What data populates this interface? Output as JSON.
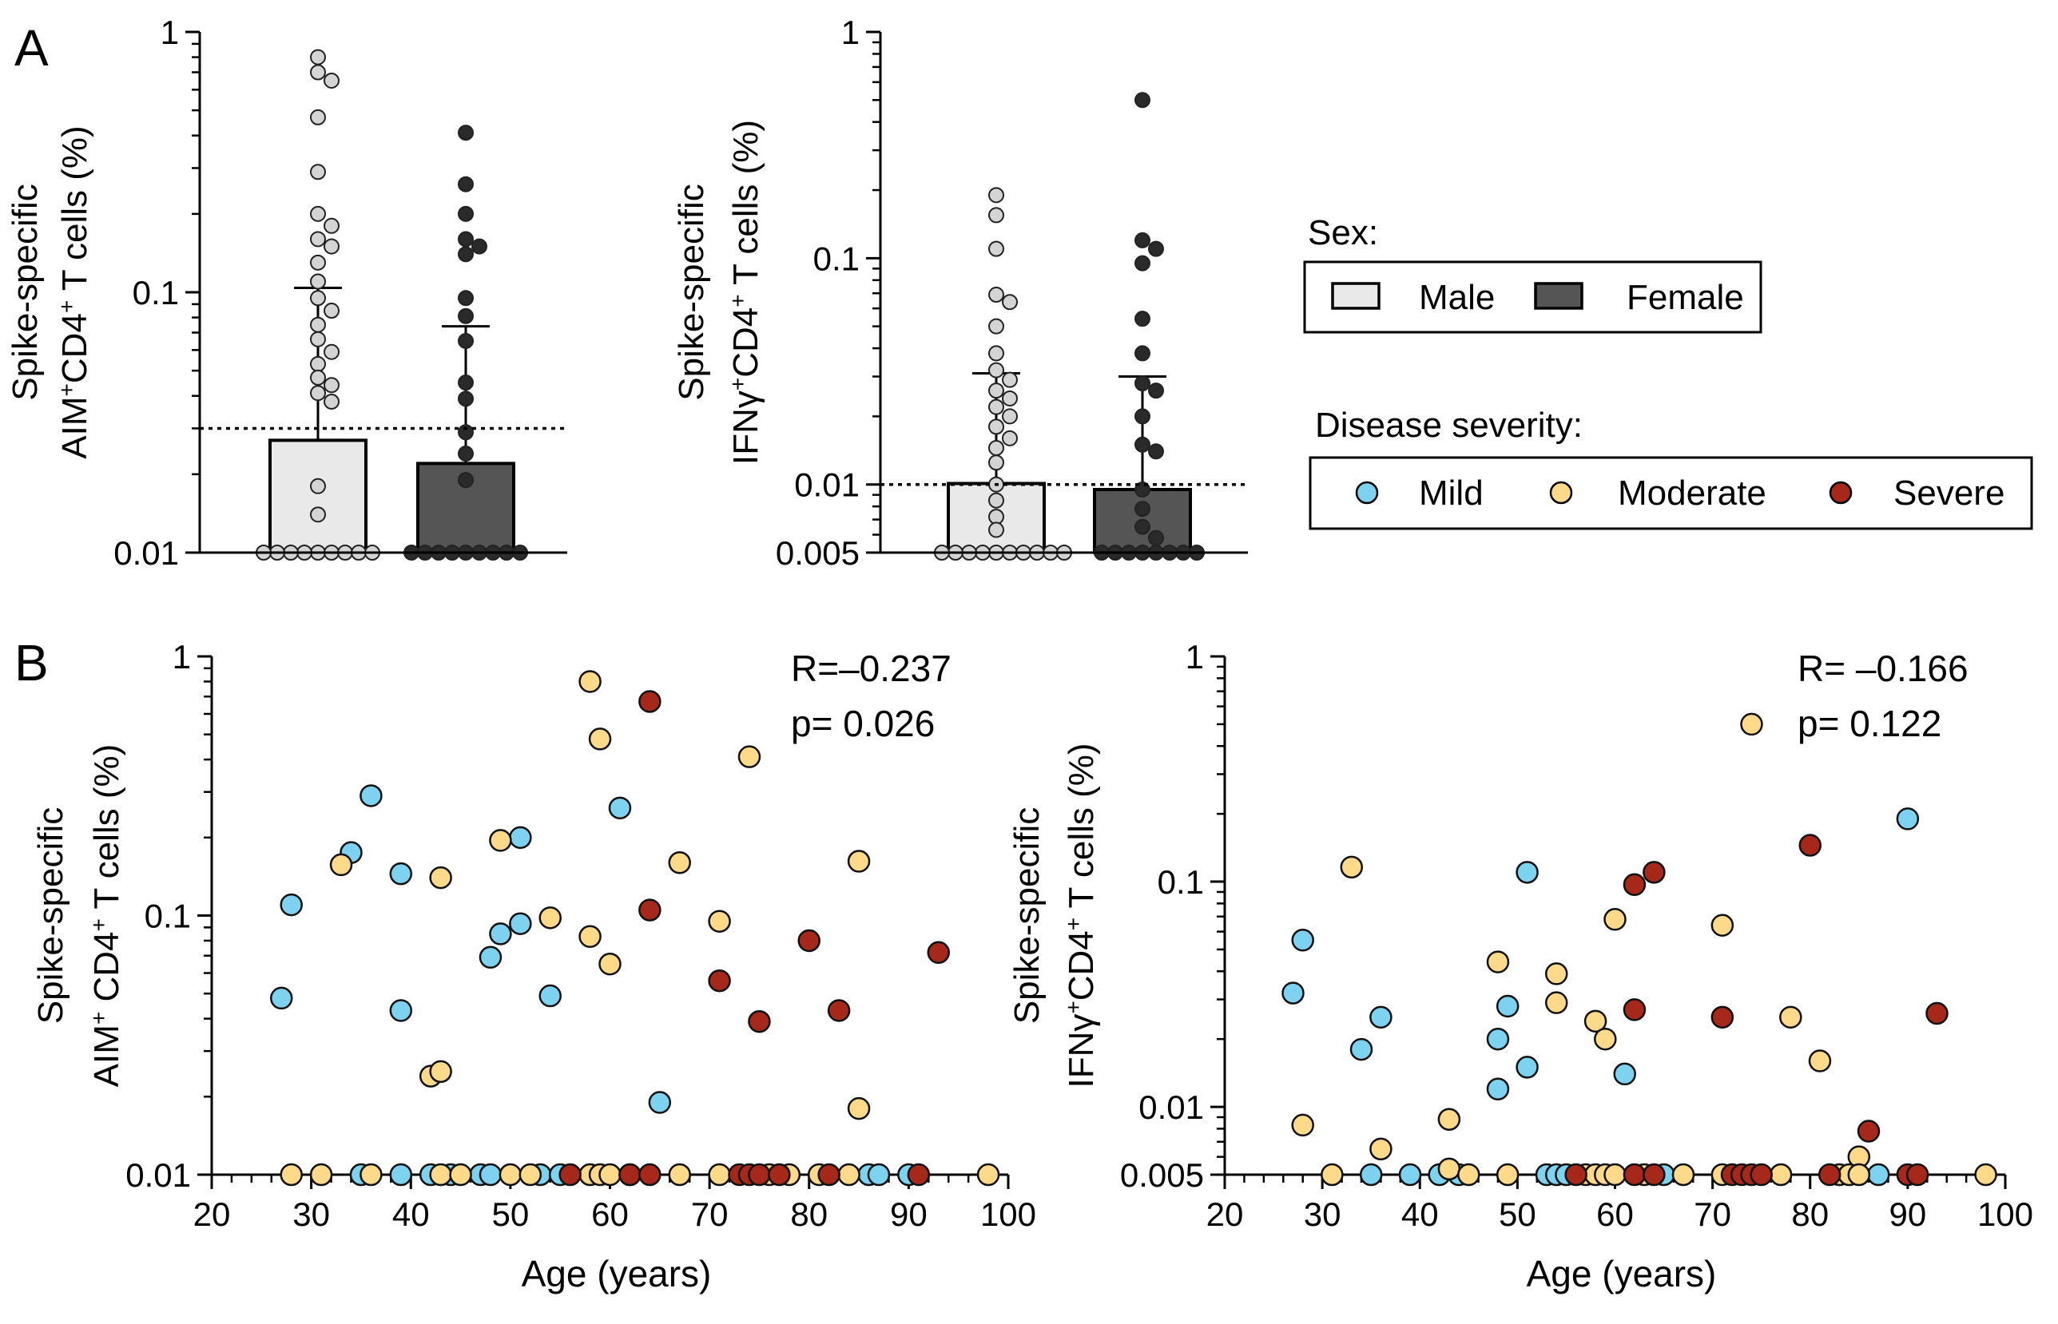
{
  "panels": {
    "A": "A",
    "B": "B"
  },
  "colors": {
    "male": "#e9e9e9",
    "female": "#555555",
    "male_point": "#d4d4d4",
    "female_point": "#2a2a2a",
    "mild": "#7dd3ef",
    "moderate": "#fdd98a",
    "severe": "#a5281b"
  },
  "legend": {
    "sex_title": "Sex:",
    "male": "Male",
    "female": "Female",
    "severity_title": "Disease severity:",
    "mild": "Mild",
    "moderate": "Moderate",
    "severe": "Severe"
  },
  "chart_data": [
    {
      "id": "A1",
      "type": "bar",
      "scale": "log",
      "ylim": [
        0.01,
        1
      ],
      "yticks": [
        "0.01",
        "0.1",
        "1"
      ],
      "ylabel_line1": "Spike-specific",
      "ylabel_line2_pre": "AIM",
      "ylabel_line2_mid": "CD4",
      "ylabel_line2_post": " T cells  (%)",
      "threshold": 0.03,
      "categories": [
        "Male",
        "Female"
      ],
      "bars": [
        {
          "name": "Male",
          "value": 0.027,
          "error_upper": 0.104,
          "points": [
            0.8,
            0.7,
            0.65,
            0.47,
            0.29,
            0.2,
            0.18,
            0.16,
            0.15,
            0.13,
            0.11,
            0.095,
            0.085,
            0.075,
            0.066,
            0.059,
            0.053,
            0.047,
            0.044,
            0.041,
            0.038,
            0.018,
            0.014,
            0.01,
            0.01,
            0.01,
            0.01,
            0.01,
            0.01,
            0.01,
            0.01,
            0.01
          ]
        },
        {
          "name": "Female",
          "value": 0.022,
          "error_upper": 0.074,
          "points": [
            0.41,
            0.26,
            0.2,
            0.16,
            0.15,
            0.14,
            0.095,
            0.081,
            0.065,
            0.045,
            0.039,
            0.029,
            0.024,
            0.019,
            0.01,
            0.01,
            0.01,
            0.01,
            0.01,
            0.01,
            0.01,
            0.01,
            0.01
          ]
        }
      ]
    },
    {
      "id": "A2",
      "type": "bar",
      "scale": "log",
      "ylim": [
        0.005,
        1
      ],
      "yticks": [
        "0.005",
        "0.01",
        "0.1",
        "1"
      ],
      "ylabel_line1": "Spike-specific",
      "ylabel_line2_pre": "IFNγ",
      "ylabel_line2_mid": "CD4",
      "ylabel_line2_post": " T cells  (%)",
      "threshold": 0.01,
      "categories": [
        "Male",
        "Female"
      ],
      "bars": [
        {
          "name": "Male",
          "value": 0.0101,
          "error_upper": 0.031,
          "points": [
            0.19,
            0.155,
            0.11,
            0.069,
            0.064,
            0.05,
            0.038,
            0.032,
            0.029,
            0.026,
            0.024,
            0.022,
            0.02,
            0.018,
            0.016,
            0.0145,
            0.0125,
            0.01,
            0.0085,
            0.0072,
            0.0063,
            0.005,
            0.005,
            0.005,
            0.005,
            0.005,
            0.005,
            0.005,
            0.005,
            0.005,
            0.005
          ]
        },
        {
          "name": "Female",
          "value": 0.0095,
          "error_upper": 0.03,
          "points": [
            0.5,
            0.12,
            0.11,
            0.095,
            0.054,
            0.038,
            0.028,
            0.026,
            0.02,
            0.015,
            0.014,
            0.0095,
            0.0078,
            0.0065,
            0.0058,
            0.005,
            0.005,
            0.005,
            0.005,
            0.005,
            0.005,
            0.005,
            0.005
          ]
        }
      ]
    },
    {
      "id": "B1",
      "type": "scatter",
      "scale": "log",
      "xlim": [
        20,
        100
      ],
      "ylim": [
        0.01,
        1
      ],
      "xticks": [
        "20",
        "30",
        "40",
        "50",
        "60",
        "70",
        "80",
        "90",
        "100"
      ],
      "yticks": [
        "0.01",
        "0.1",
        "1"
      ],
      "xlabel": "Age (years)",
      "ylabel_line1": "Spike-specific",
      "ylabel_line2_pre": "AIM",
      "ylabel_line2_mid": " CD4",
      "ylabel_line2_post": " T cells (%)",
      "stat_r": "R=–0.237",
      "stat_p": "p= 0.026",
      "series": [
        {
          "name": "Mild",
          "points": [
            [
              27,
              0.048
            ],
            [
              28,
              0.11
            ],
            [
              34,
              0.175
            ],
            [
              36,
              0.29
            ],
            [
              39,
              0.145
            ],
            [
              39,
              0.043
            ],
            [
              48,
              0.069
            ],
            [
              49,
              0.085
            ],
            [
              51,
              0.093
            ],
            [
              51,
              0.2
            ],
            [
              54,
              0.049
            ],
            [
              61,
              0.26
            ],
            [
              65,
              0.019
            ],
            [
              35,
              0.01
            ],
            [
              39,
              0.01
            ],
            [
              42,
              0.01
            ],
            [
              44,
              0.01
            ],
            [
              47,
              0.01
            ],
            [
              48,
              0.01
            ],
            [
              53,
              0.01
            ],
            [
              55,
              0.01
            ],
            [
              86,
              0.01
            ],
            [
              87,
              0.01
            ],
            [
              90,
              0.01
            ]
          ]
        },
        {
          "name": "Moderate",
          "points": [
            [
              33,
              0.157
            ],
            [
              42,
              0.024
            ],
            [
              43,
              0.025
            ],
            [
              43,
              0.14
            ],
            [
              49,
              0.195
            ],
            [
              54,
              0.098
            ],
            [
              58,
              0.8
            ],
            [
              58,
              0.083
            ],
            [
              59,
              0.48
            ],
            [
              60,
              0.065
            ],
            [
              67,
              0.16
            ],
            [
              71,
              0.095
            ],
            [
              74,
              0.41
            ],
            [
              85,
              0.162
            ],
            [
              85,
              0.018
            ],
            [
              28,
              0.01
            ],
            [
              31,
              0.01
            ],
            [
              36,
              0.01
            ],
            [
              43,
              0.01
            ],
            [
              45,
              0.01
            ],
            [
              50,
              0.01
            ],
            [
              52,
              0.01
            ],
            [
              58,
              0.01
            ],
            [
              59,
              0.01
            ],
            [
              60,
              0.01
            ],
            [
              62,
              0.01
            ],
            [
              67,
              0.01
            ],
            [
              71,
              0.01
            ],
            [
              76,
              0.01
            ],
            [
              78,
              0.01
            ],
            [
              81,
              0.01
            ],
            [
              84,
              0.01
            ],
            [
              98,
              0.01
            ]
          ]
        },
        {
          "name": "Severe",
          "points": [
            [
              64,
              0.67
            ],
            [
              64,
              0.105
            ],
            [
              71,
              0.056
            ],
            [
              75,
              0.039
            ],
            [
              80,
              0.08
            ],
            [
              83,
              0.043
            ],
            [
              93,
              0.072
            ],
            [
              56,
              0.01
            ],
            [
              62,
              0.01
            ],
            [
              64,
              0.01
            ],
            [
              73,
              0.01
            ],
            [
              74,
              0.01
            ],
            [
              75,
              0.01
            ],
            [
              77,
              0.01
            ],
            [
              82,
              0.01
            ],
            [
              91,
              0.01
            ]
          ]
        }
      ]
    },
    {
      "id": "B2",
      "type": "scatter",
      "scale": "log",
      "xlim": [
        20,
        100
      ],
      "ylim": [
        0.005,
        1
      ],
      "xticks": [
        "20",
        "30",
        "40",
        "50",
        "60",
        "70",
        "80",
        "90",
        "100"
      ],
      "yticks": [
        "0.005",
        "0.01",
        "0.1",
        "1"
      ],
      "xlabel": "Age (years)",
      "ylabel_line1": "Spike-specific",
      "ylabel_line2_pre": "IFNγ",
      "ylabel_line2_mid": "CD4",
      "ylabel_line2_post": " T cells  (%)",
      "stat_r": "R=  –0.166",
      "stat_p": "p= 0.122",
      "series": [
        {
          "name": "Mild",
          "points": [
            [
              27,
              0.032
            ],
            [
              28,
              0.055
            ],
            [
              34,
              0.018
            ],
            [
              36,
              0.025
            ],
            [
              48,
              0.012
            ],
            [
              48,
              0.02
            ],
            [
              49,
              0.028
            ],
            [
              51,
              0.015
            ],
            [
              51,
              0.11
            ],
            [
              61,
              0.014
            ],
            [
              90,
              0.19
            ],
            [
              35,
              0.005
            ],
            [
              39,
              0.005
            ],
            [
              42,
              0.005
            ],
            [
              44,
              0.005
            ],
            [
              53,
              0.005
            ],
            [
              54,
              0.005
            ],
            [
              55,
              0.005
            ],
            [
              65,
              0.005
            ],
            [
              87,
              0.005
            ]
          ]
        },
        {
          "name": "Moderate",
          "points": [
            [
              28,
              0.0083
            ],
            [
              33,
              0.116
            ],
            [
              36,
              0.0065
            ],
            [
              43,
              0.0088
            ],
            [
              48,
              0.044
            ],
            [
              54,
              0.039
            ],
            [
              54,
              0.029
            ],
            [
              58,
              0.024
            ],
            [
              59,
              0.02
            ],
            [
              60,
              0.068
            ],
            [
              71,
              0.064
            ],
            [
              74,
              0.5
            ],
            [
              78,
              0.025
            ],
            [
              81,
              0.016
            ],
            [
              85,
              0.006
            ],
            [
              31,
              0.005
            ],
            [
              43,
              0.0053
            ],
            [
              45,
              0.005
            ],
            [
              49,
              0.005
            ],
            [
              57,
              0.005
            ],
            [
              58,
              0.005
            ],
            [
              59,
              0.005
            ],
            [
              60,
              0.005
            ],
            [
              63,
              0.005
            ],
            [
              67,
              0.005
            ],
            [
              71,
              0.005
            ],
            [
              77,
              0.005
            ],
            [
              83,
              0.005
            ],
            [
              84,
              0.005
            ],
            [
              85,
              0.005
            ],
            [
              98,
              0.005
            ]
          ]
        },
        {
          "name": "Severe",
          "points": [
            [
              62,
              0.097
            ],
            [
              62,
              0.027
            ],
            [
              64,
              0.11
            ],
            [
              71,
              0.025
            ],
            [
              80,
              0.145
            ],
            [
              86,
              0.0078
            ],
            [
              93,
              0.026
            ],
            [
              56,
              0.005
            ],
            [
              62,
              0.005
            ],
            [
              64,
              0.005
            ],
            [
              72,
              0.005
            ],
            [
              73,
              0.005
            ],
            [
              74,
              0.005
            ],
            [
              75,
              0.005
            ],
            [
              82,
              0.005
            ],
            [
              90,
              0.005
            ],
            [
              91,
              0.005
            ]
          ]
        }
      ]
    }
  ]
}
